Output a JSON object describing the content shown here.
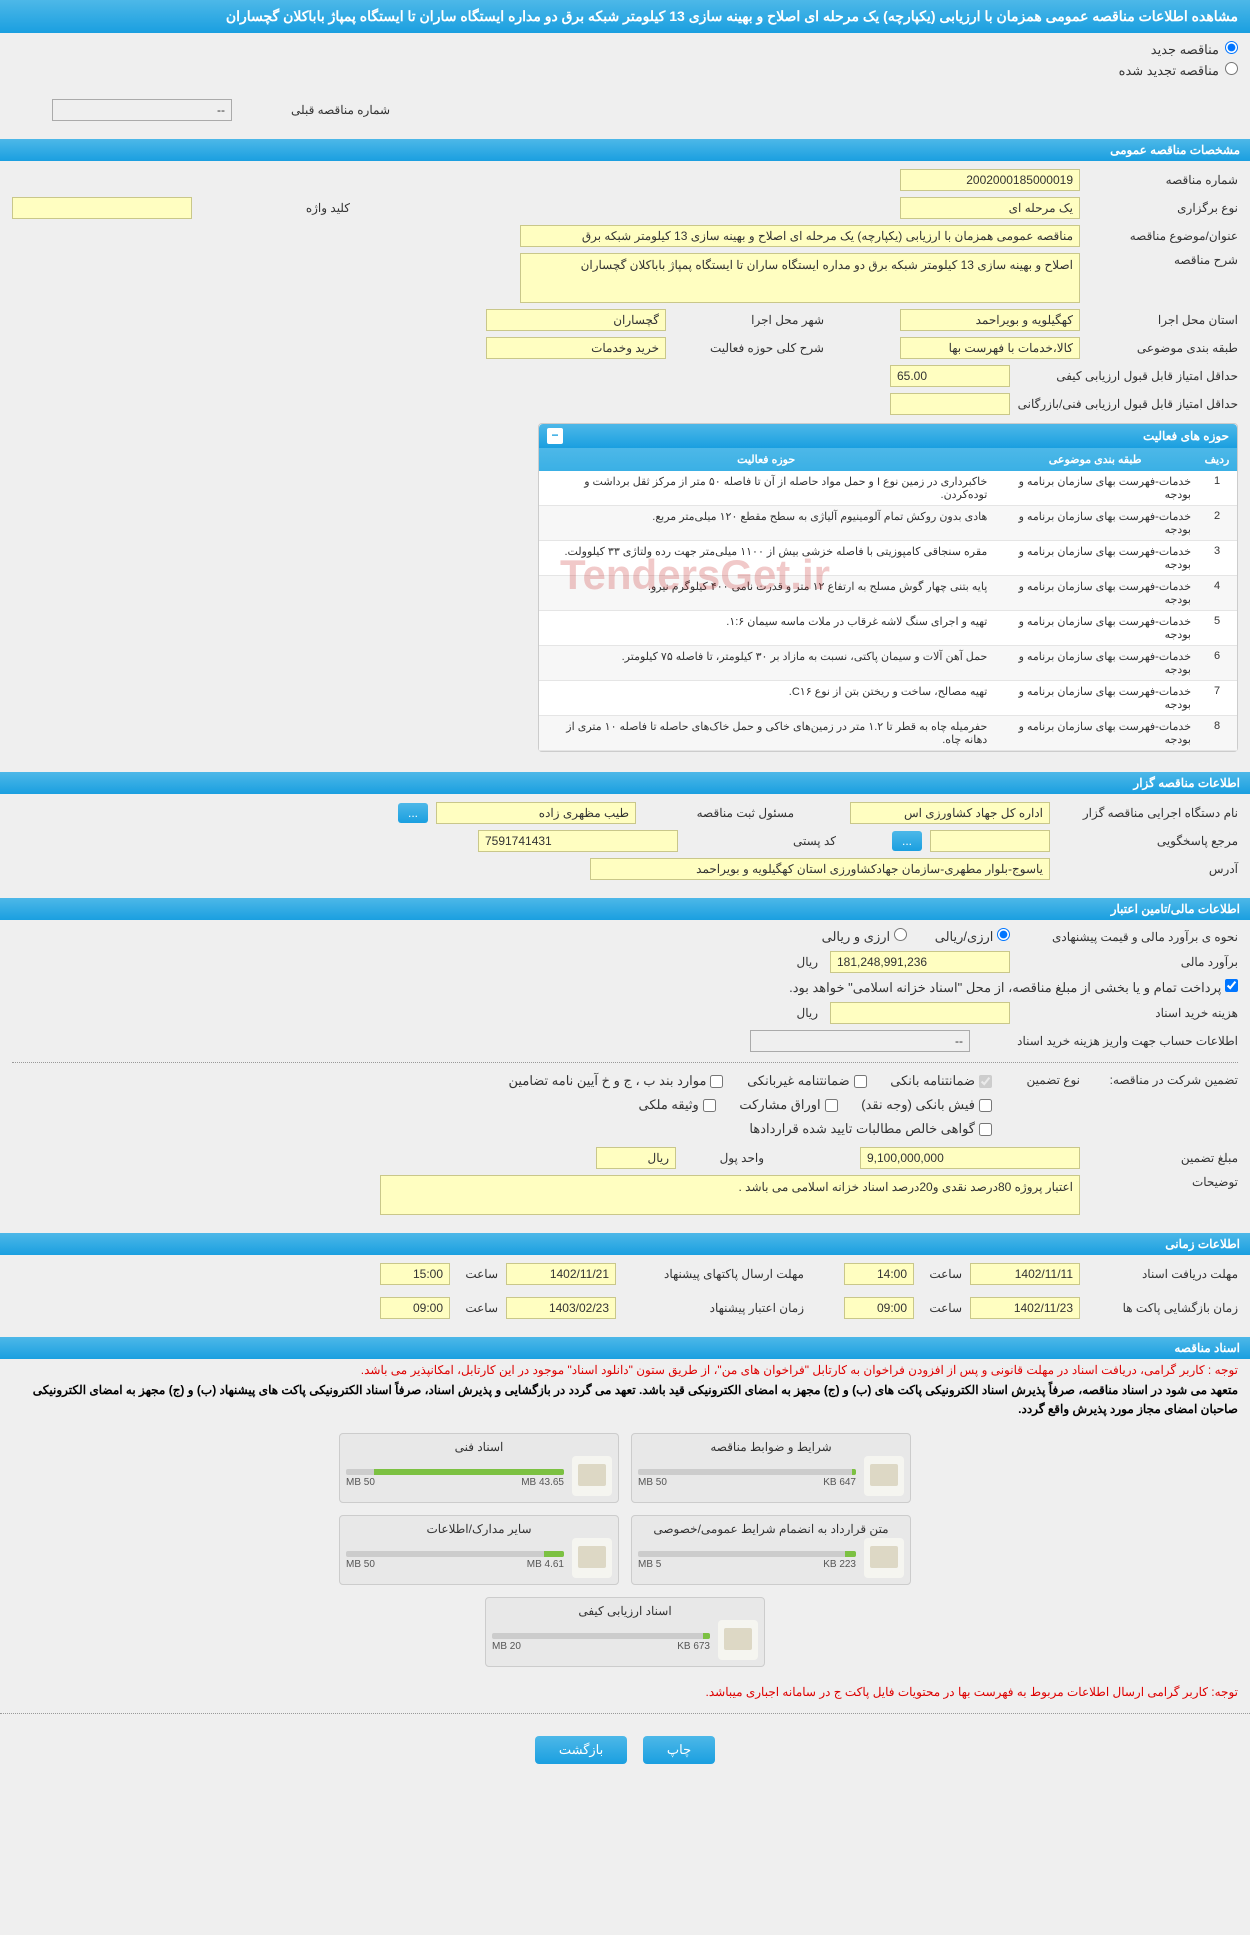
{
  "header_title": "مشاهده اطلاعات مناقصه عمومی همزمان با ارزیابی (یکپارچه) یک مرحله ای اصلاح و بهینه سازی 13 کیلومتر شبکه برق دو مداره ایستگاه ساران تا ایستگاه پمپاژ باباکلان گچساران",
  "radios": {
    "new_tender": "مناقصه جدید",
    "renewed_tender": "مناقصه تجدید شده"
  },
  "prev_tender_label": "شماره مناقصه قبلی",
  "prev_tender_value": "--",
  "sections": {
    "general": "مشخصات مناقصه عمومی",
    "organizer": "اطلاعات مناقصه گزار",
    "financial": "اطلاعات مالی/تامین اعتبار",
    "timing": "اطلاعات زمانی",
    "docs": "اسناد مناقصه"
  },
  "general": {
    "tender_no_label": "شماره مناقصه",
    "tender_no": "2002000185000019",
    "type_label": "نوع برگزاری",
    "type": "یک مرحله ای",
    "keyword_label": "کلید واژه",
    "keyword": "",
    "title_label": "عنوان/موضوع مناقصه",
    "title": "مناقصه عمومی همزمان با ارزیابی (یکپارچه) یک مرحله ای اصلاح و بهینه سازی 13 کیلومتر شبکه برق",
    "desc_label": "شرح مناقصه",
    "desc": "اصلاح و بهینه سازی 13 کیلومتر شبکه برق دو مداره ایستگاه ساران تا ایستگاه پمپاژ باباکلان گچساران",
    "province_label": "استان محل اجرا",
    "province": "کهگیلویه و بویراحمد",
    "city_label": "شهر محل اجرا",
    "city": "گچساران",
    "category_label": "طبقه بندی موضوعی",
    "category": "کالا،خدمات با فهرست بها",
    "activity_desc_label": "شرح کلی حوزه فعالیت",
    "activity_desc": "خرید وخدمات",
    "quality_score_label": "حداقل امتیاز قابل قبول ارزیابی کیفی",
    "quality_score": "65.00",
    "tech_score_label": "حداقل امتیاز قابل قبول ارزیابی فنی/بازرگانی",
    "tech_score": ""
  },
  "activity_panel": {
    "title": "حوزه های فعالیت",
    "cols": [
      "ردیف",
      "طبقه بندی موضوعی",
      "حوزه فعالیت"
    ],
    "rows": [
      [
        "1",
        "خدمات-فهرست بهای سازمان برنامه و بودجه",
        "خاکبرداری در زمین نوع I و حمل مواد حاصله از آن تا فاصله ۵۰ متر از مرکز ثقل برداشت و توده‌کردن."
      ],
      [
        "2",
        "خدمات-فهرست بهای سازمان برنامه و بودجه",
        "هادی بدون روکش تمام آلومینیوم آلیاژی به سطح مقطع ۱۲۰ میلی‌متر مربع."
      ],
      [
        "3",
        "خدمات-فهرست بهای سازمان برنامه و بودجه",
        "مقره سنجاقی کامپوزیتی با فاصله خزشی بیش از ۱۱۰۰ میلی‌متر جهت رده ولتاژی ۳۳ کیلوولت."
      ],
      [
        "4",
        "خدمات-فهرست بهای سازمان برنامه و بودجه",
        "پایه بتنی چهار گوش مسلح به ارتفاع ۱۲ متر و قدرت نامی ۴۰۰ کیلوگرم نیرو."
      ],
      [
        "5",
        "خدمات-فهرست بهای سازمان برنامه و بودجه",
        "تهیه و اجرای سنگ لاشه غرقاب در ملات ماسه سیمان ۱:۶."
      ],
      [
        "6",
        "خدمات-فهرست بهای سازمان برنامه و بودجه",
        "حمل آهن آلات و سیمان پاکتی، نسبت به مازاد بر ۳۰ کیلومتر، تا فاصله ۷۵ کیلومتر."
      ],
      [
        "7",
        "خدمات-فهرست بهای سازمان برنامه و بودجه",
        "تهیه مصالح، ساخت و ریختن بتن از نوع C۱۶."
      ],
      [
        "8",
        "خدمات-فهرست بهای سازمان برنامه و بودجه",
        "حفرمیله چاه به قطر تا ۱.۲ متر در زمین‌های خاکی و حمل خاک‌های حاصله تا فاصله ۱۰ متری از دهانه چاه."
      ]
    ]
  },
  "organizer": {
    "agency_label": "نام دستگاه اجرایی مناقصه گزار",
    "agency": "اداره کل جهاد کشاورزی اس",
    "registrar_label": "مسئول ثبت مناقصه",
    "registrar": "طیب مظهری زاده",
    "responder_label": "مرجع پاسخگویی",
    "responder": "",
    "postal_label": "کد پستی",
    "postal": "7591741431",
    "address_label": "آدرس",
    "address": "یاسوج-بلوار مطهری-سازمان جهادکشاورزی استان کهگیلویه و بویراحمد"
  },
  "financial": {
    "estimate_method_label": "نحوه ی برآورد مالی و قیمت پیشنهادی",
    "opt_rial": "ارزی/ریالی",
    "opt_foreign": "ارزی و ریالی",
    "estimate_label": "برآورد مالی",
    "estimate": "181,248,991,236",
    "unit_rial": "ریال",
    "payment_note": "پرداخت تمام و یا بخشی از مبلغ مناقصه، از محل \"اسناد خزانه اسلامی\" خواهد بود.",
    "doc_fee_label": "هزینه خرید اسناد",
    "doc_fee": "",
    "account_label": "اطلاعات حساب جهت واریز هزینه خرید اسناد",
    "account_value": "--",
    "guarantee_label": "تضمین شرکت در مناقصه:",
    "guarantee_type_label": "نوع تضمین",
    "chk_bank": "ضمانتنامه بانکی",
    "chk_nonbank": "ضمانتنامه غیربانکی",
    "chk_items": "موارد بند ب ، ج و خ آیین نامه تضامین",
    "chk_cash": "فیش بانکی (وجه نقد)",
    "chk_bonds": "اوراق مشارکت",
    "chk_property": "وثیقه ملکی",
    "chk_receivables": "گواهی خالص مطالبات تایید شده قراردادها",
    "guarantee_amount_label": "مبلغ تضمین",
    "guarantee_amount": "9,100,000,000",
    "unit_label": "واحد پول",
    "unit_value": "ریال",
    "notes_label": "توضیحات",
    "notes": "اعتبار پروژه 80درصد نقدی و20درصد اسناد خزانه اسلامی می باشد ."
  },
  "timing": {
    "doc_receive_label": "مهلت دریافت اسناد",
    "doc_receive_date": "1402/11/11",
    "doc_receive_time": "14:00",
    "bid_send_label": "مهلت ارسال پاکتهای پیشنهاد",
    "bid_send_date": "1402/11/21",
    "bid_send_time": "15:00",
    "open_label": "زمان بازگشایی پاکت ها",
    "open_date": "1402/11/23",
    "open_time": "09:00",
    "validity_label": "زمان اعتبار پیشنهاد",
    "validity_date": "1403/02/23",
    "validity_time": "09:00",
    "time_label": "ساعت"
  },
  "docs_note1": "توجه : کاربر گرامی، دریافت اسناد در مهلت قانونی و پس از افزودن فراخوان به کارتابل \"فراخوان های من\"، از طریق ستون \"دانلود اسناد\" موجود در این کارتابل، امکانپذیر می باشد.",
  "docs_note2": "متعهد می شود در اسناد مناقصه، صرفاً پذیرش اسناد الکترونیکی پاکت های (ب) و (ج) مجهز به امضای الکترونیکی قید باشد. تعهد می گردد در بازگشایی و پذیرش اسناد، صرفاً اسناد الکترونیکی پاکت های پیشنهاد (ب) و (ج) مجهز به امضای الکترونیکی صاحبان امضای مجاز مورد پذیرش واقع گردد.",
  "files": [
    {
      "title": "شرایط و ضوابط مناقصه",
      "used": "647 KB",
      "total": "50 MB",
      "pct": 2
    },
    {
      "title": "اسناد فنی",
      "used": "43.65 MB",
      "total": "50 MB",
      "pct": 87
    },
    {
      "title": "متن قرارداد به انضمام شرایط عمومی/خصوصی",
      "used": "223 KB",
      "total": "5 MB",
      "pct": 5
    },
    {
      "title": "سایر مدارک/اطلاعات",
      "used": "4.61 MB",
      "total": "50 MB",
      "pct": 9
    },
    {
      "title": "اسناد ارزیابی کیفی",
      "used": "673 KB",
      "total": "20 MB",
      "pct": 3
    }
  ],
  "docs_note3": "توجه: کاربر گرامی ارسال اطلاعات مربوط به فهرست بها در محتویات فایل پاکت ج در سامانه اجباری میباشد.",
  "btn_print": "چاپ",
  "btn_back": "بازگشت",
  "watermark": "TendersGet.ir"
}
